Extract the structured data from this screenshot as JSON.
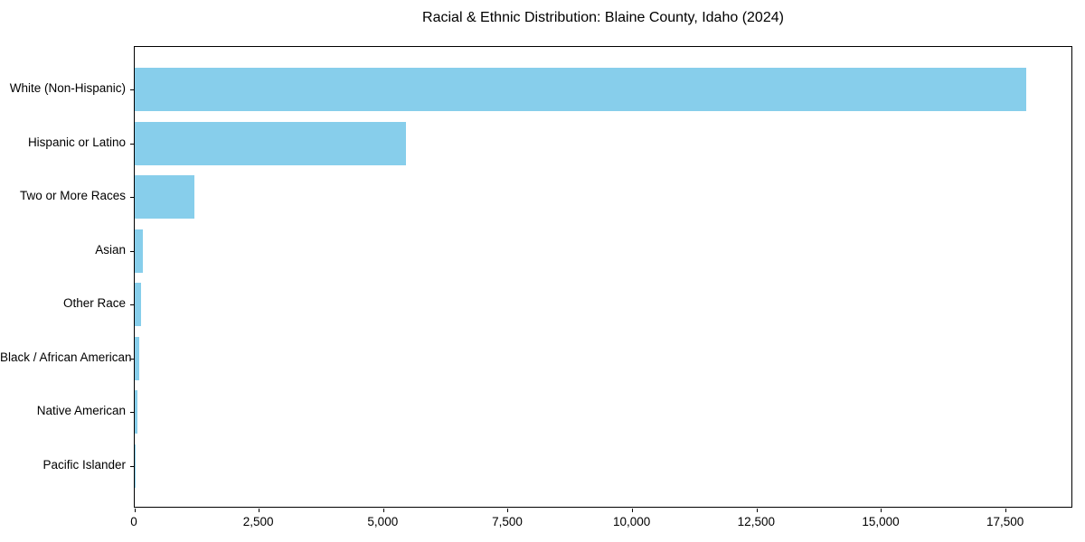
{
  "chart_data": {
    "type": "bar",
    "orientation": "horizontal",
    "title": "Racial & Ethnic Distribution: Blaine County, Idaho (2024)",
    "categories": [
      "White (Non-Hispanic)",
      "Hispanic or Latino",
      "Two or More Races",
      "Asian",
      "Other Race",
      "Black / African American",
      "Native American",
      "Pacific Islander"
    ],
    "values": [
      17900,
      5450,
      1200,
      170,
      130,
      85,
      55,
      5
    ],
    "bar_color": "#87CEEB",
    "xlim": [
      0,
      18850
    ],
    "x_ticks": [
      0,
      2500,
      5000,
      7500,
      10000,
      12500,
      15000,
      17500
    ],
    "x_tick_labels": [
      "0",
      "2,500",
      "5,000",
      "7,500",
      "10,000",
      "12,500",
      "15,000",
      "17,500"
    ],
    "xlabel": "",
    "ylabel": "",
    "grid": false,
    "legend": null,
    "background_color": "#ffffff",
    "axis_color": "#000000"
  }
}
